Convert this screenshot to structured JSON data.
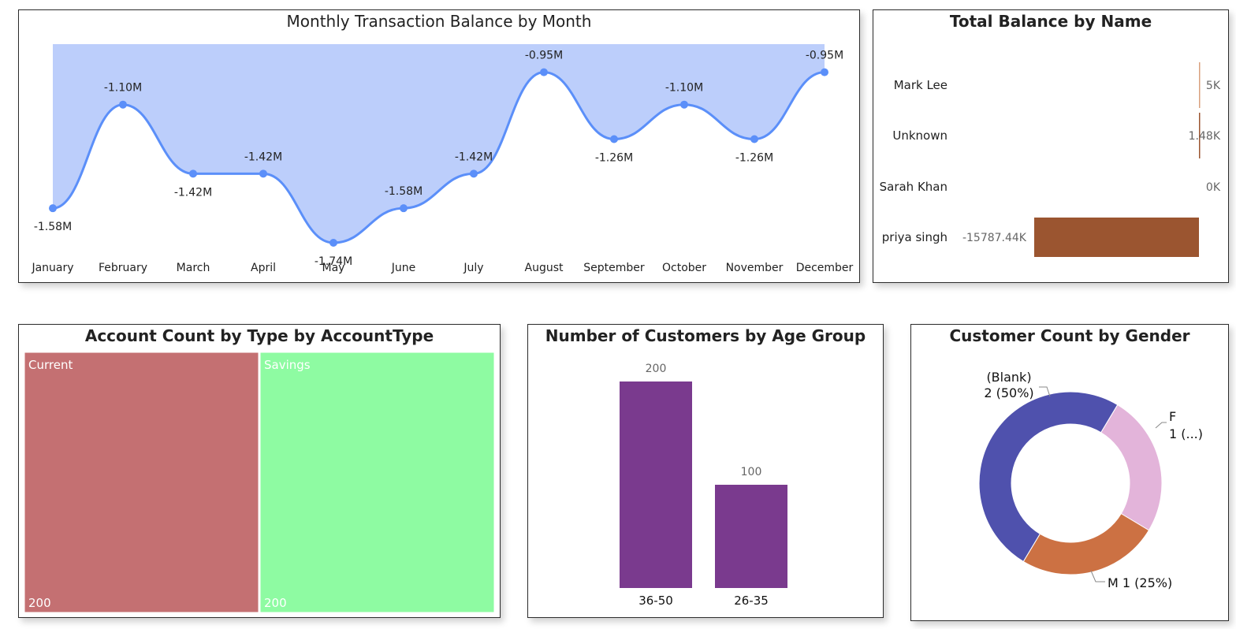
{
  "colors": {
    "line": "#5b8ff9",
    "area": "#bccefb",
    "balance_bar": "#9b5530",
    "balance_bar_light": "#d9a07e",
    "treemap_current": "#c47072",
    "treemap_savings": "#8efba2",
    "age_bar": "#7a3a8e",
    "donut_blank": "#4f51ad",
    "donut_f": "#e3b4da",
    "donut_m": "#cc7143"
  },
  "chart_data": [
    {
      "id": "monthly_balance",
      "type": "area",
      "title": "Monthly Transaction Balance by Month",
      "categories": [
        "January",
        "February",
        "March",
        "April",
        "May",
        "June",
        "July",
        "August",
        "September",
        "October",
        "November",
        "December"
      ],
      "series": [
        {
          "values": [
            -1.58,
            -1.1,
            -1.42,
            -1.42,
            -1.74,
            -1.58,
            -1.42,
            -0.95,
            -1.26,
            -1.1,
            -1.26,
            -0.95
          ]
        }
      ],
      "data_labels": [
        "-1.58M",
        "-1.10M",
        "-1.42M",
        "-1.42M",
        "-1.74M",
        "-1.58M",
        "-1.42M",
        "-0.95M",
        "-1.26M",
        "-1.10M",
        "-1.26M",
        "-0.95M"
      ],
      "unit": "M",
      "ylim": [
        -1.74,
        -0.82
      ],
      "grid": false
    },
    {
      "id": "total_balance",
      "type": "bar",
      "orientation": "horizontal",
      "title": "Total Balance by Name",
      "categories": [
        "Mark Lee",
        "Unknown",
        "Sarah Khan",
        "priya singh"
      ],
      "values": [
        5,
        1.48,
        0,
        -15787.44
      ],
      "value_unit": "K",
      "data_labels": [
        "5K",
        "1.48K",
        "0K",
        "-15787.44K"
      ]
    },
    {
      "id": "account_type",
      "type": "treemap",
      "title": "Account Count by Type by AccountType",
      "categories": [
        "Current",
        "Savings"
      ],
      "values": [
        200,
        200
      ]
    },
    {
      "id": "age_group",
      "type": "bar",
      "title": "Number of Customers by Age Group",
      "categories": [
        "36-50",
        "26-35"
      ],
      "values": [
        200,
        100
      ],
      "ylim": [
        0,
        200
      ]
    },
    {
      "id": "gender",
      "type": "pie",
      "style": "donut",
      "title": "Customer Count by Gender",
      "categories": [
        "(Blank)",
        "F",
        "M"
      ],
      "values": [
        2,
        1,
        1
      ],
      "labels": [
        {
          "line1": "(Blank)",
          "line2": "2 (50%)"
        },
        {
          "line1": "F",
          "line2": "1 (...)"
        },
        {
          "line1": "M 1 (25%)",
          "line2": ""
        }
      ]
    }
  ]
}
